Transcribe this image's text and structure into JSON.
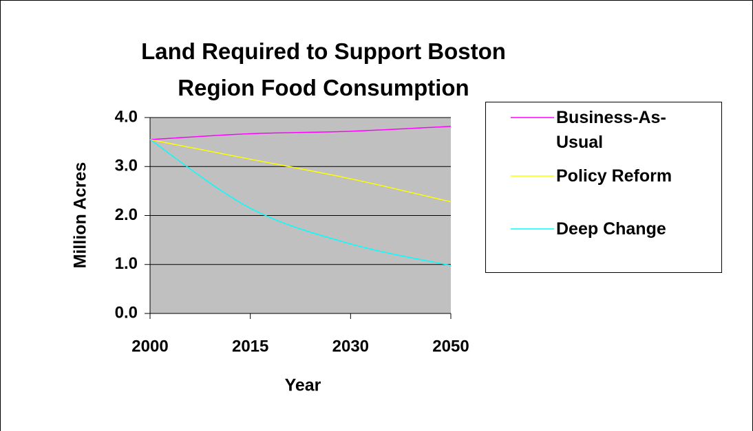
{
  "chart_data": {
    "type": "line",
    "title": "Land Required to Support Boston Region Food Consumption",
    "x_label": "Year",
    "y_label": "Million Acres",
    "categories": [
      "2000",
      "2015",
      "2030",
      "2050"
    ],
    "series": [
      {
        "name": "Business-As-Usual",
        "color": "#ff00ff",
        "values": [
          3.55,
          3.67,
          3.72,
          3.82
        ]
      },
      {
        "name": "Policy Reform",
        "color": "#ffff00",
        "values": [
          3.55,
          3.15,
          2.75,
          2.28
        ]
      },
      {
        "name": "Deep Change",
        "color": "#00ffff",
        "values": [
          3.55,
          2.15,
          1.42,
          0.98
        ]
      }
    ],
    "ylim": [
      0,
      4
    ],
    "yticks": [
      {
        "value": 0,
        "label": "0.0"
      },
      {
        "value": 1,
        "label": "1.0"
      },
      {
        "value": 2,
        "label": "2.0"
      },
      {
        "value": 3,
        "label": "3.0"
      },
      {
        "value": 4,
        "label": "4.0"
      }
    ],
    "grid": true,
    "legend": "right",
    "plot_background": "#c0c0c0"
  }
}
